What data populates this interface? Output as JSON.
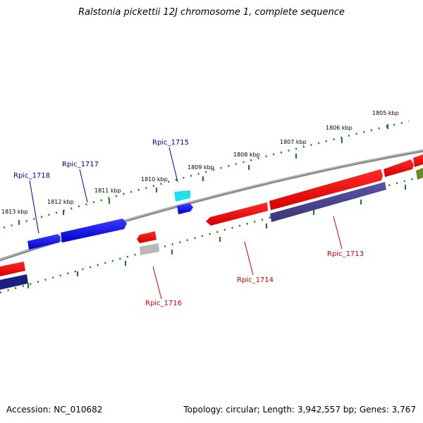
{
  "title": "Ralstonia pickettii 12J chromosome 1, complete sequence",
  "footer": {
    "accession": "Accession: NC_010682",
    "topology": "Topology: circular; Length: 3,942,557 bp; Genes: 3,767"
  },
  "colors": {
    "forward_gene": "#1f1fe0",
    "reverse_gene": "#e01515",
    "forward_label": "#000099",
    "reverse_label": "#cc0000",
    "scale_ticks": "#1a7a1a",
    "backbone": "#7a7a7a"
  },
  "scale_labels": [
    "1813 kbp",
    "1812 kbp",
    "1811 kbp",
    "1810 kbp",
    "1809 kbp",
    "1808 kbp",
    "1807 kbp",
    "1806 kbp",
    "1805 kbp"
  ],
  "gene_labels": {
    "rpic_1718": "Rpic_1718",
    "rpic_1717": "Rpic_1717",
    "rpic_1715": "Rpic_1715",
    "rpic_1716": "Rpic_1716",
    "rpic_1714": "Rpic_1714",
    "rpic_1713": "Rpic_1713"
  }
}
